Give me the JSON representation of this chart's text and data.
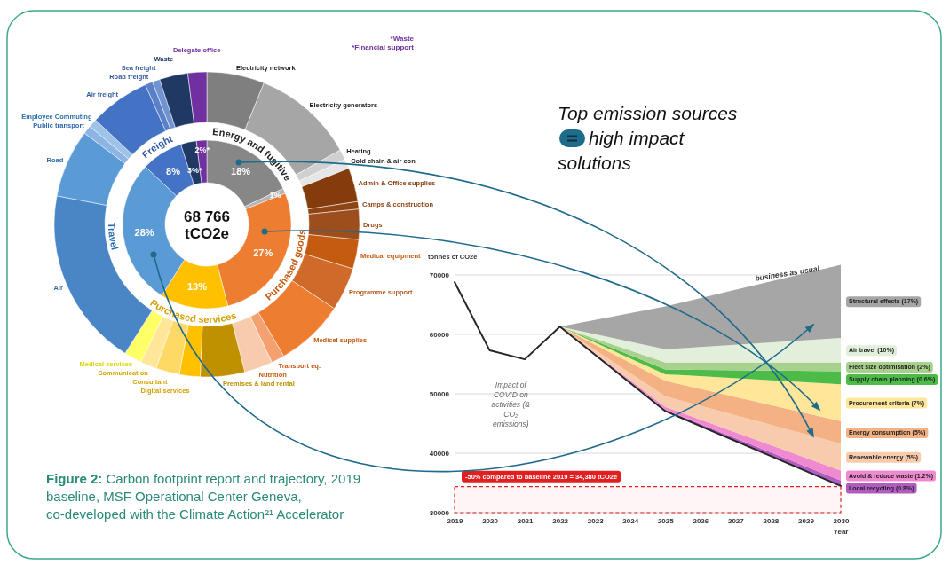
{
  "chart_data": [
    {
      "type": "donut",
      "categories": [
        "Energy and fugitive",
        null,
        "Purchased goods",
        "Purchased services",
        "Travel",
        "Freight",
        null,
        null
      ],
      "values": [
        18,
        1,
        27,
        13,
        28,
        8,
        3,
        2
      ],
      "colors": [
        "#878787",
        "#b4b4b4",
        "#ed7d31",
        "#ffc000",
        "#5b9bd5",
        "#4472c4",
        "#1f3864",
        "#7030a0"
      ],
      "value_labels": [
        "18%",
        "1%",
        "27%",
        "13%",
        "28%",
        "8%",
        "3%*",
        "2%*"
      ],
      "annotations": [
        "68 766 tCO2e",
        "*Waste",
        "*Financial support",
        "Figure 2: Carbon footprint report and trajectory, 2019 baseline, MSF Operational Center Geneva, co-developed with the Climate Action²¹ Accelerator"
      ]
    },
    {
      "type": "donut",
      "categories": [
        "Electricity network",
        "Electricity generators",
        "Heating",
        "Cold chain & air con",
        "Admin & Office supplies",
        "Camps & construction",
        "Drugs",
        "Medical equipment",
        "Programme support",
        "Medical supplies",
        "Transport eq.",
        "Nutrition",
        "Premises & land rental",
        "Digital services",
        "Consultant",
        "Communication",
        "Medical services",
        "Air",
        "Road",
        "Public transport",
        "Employee Commuting",
        "Air freight",
        "Road freight",
        "Sea freight",
        "Waste",
        "Delegate office"
      ],
      "values": [
        6.1,
        10.8,
        1.1,
        1.0,
        3.6,
        0.8,
        3.2,
        3.1,
        4.6,
        7.3,
        1.4,
        3.0,
        4.7,
        2.2,
        2.5,
        1.7,
        1.9,
        19.0,
        7.2,
        0.9,
        0.9,
        6.4,
        0.8,
        0.8,
        3.0,
        2.0
      ],
      "colors": [
        "#7f7f7f",
        "#a6a6a6",
        "#d0d0d0",
        "#e6e6e6",
        "#843c0c",
        "#8f4414",
        "#9c4f1d",
        "#c55a11",
        "#cf6a2a",
        "#ed7d31",
        "#f4a070",
        "#f8cbad",
        "#bf9000",
        "#ffc000",
        "#ffd966",
        "#ffe699",
        "#ffff66",
        "#4a86c5",
        "#5b9bd5",
        "#8db4e2",
        "#9dc3e6",
        "#4472c4",
        "#5b80c8",
        "#6f94d0",
        "#1f3864",
        "#7030a0"
      ]
    },
    {
      "type": "area",
      "xlim": [
        2019,
        2030
      ],
      "ylim": [
        30000,
        72000
      ],
      "xticks": [
        2019,
        2020,
        2021,
        2022,
        2023,
        2024,
        2025,
        2026,
        2027,
        2028,
        2029,
        2030
      ],
      "yticks": [
        30000,
        40000,
        50000,
        60000,
        70000
      ],
      "xlabel": "Year",
      "ylabel": "tonnes of CO2e",
      "grid": "y",
      "legend": "right",
      "bands": [
        {
          "axis": "y",
          "from": 30000,
          "to": 34380,
          "label": "-50% compared to baseline 2019 = 34,380 tCO2e",
          "color": "#e02020"
        }
      ],
      "annotations": [
        "Impact of COVID on activities (& CO₂ emissions)",
        "business as usual",
        "Top emission sources",
        "high impact solutions"
      ],
      "series": [
        {
          "type": "line",
          "color": "#262626",
          "x": [
            2019,
            2020,
            2021,
            2022,
            2025,
            2030
          ],
          "values": [
            68800,
            57300,
            55800,
            61300,
            47100,
            34500
          ]
        },
        {
          "name": "Local recycling (0.8%)",
          "color": "#b05cc0",
          "x": [
            2022,
            2025,
            2030
          ],
          "values": [
            61300,
            47300,
            35400
          ]
        },
        {
          "name": "Avoid & reduce waste (1.2%)",
          "color": "#f08ad0",
          "x": [
            2022,
            2025,
            2030
          ],
          "values": [
            61300,
            47800,
            37100
          ]
        },
        {
          "name": "Renewable energy (5%)",
          "color": "#f8cbad",
          "x": [
            2022,
            2025,
            2030
          ],
          "values": [
            61300,
            49600,
            41600
          ]
        },
        {
          "name": "Energy consumption (5%)",
          "color": "#f4b183",
          "x": [
            2022,
            2025,
            2030
          ],
          "values": [
            61300,
            52200,
            45400
          ]
        },
        {
          "name": "Procurement criteria (7%)",
          "color": "#ffe699",
          "x": [
            2022,
            2025,
            2030
          ],
          "values": [
            61300,
            53300,
            51600
          ]
        },
        {
          "name": "Supply chain planning (0.6%)",
          "color": "#4cbb47",
          "x": [
            2022,
            2025,
            2030
          ],
          "values": [
            61300,
            54100,
            53800
          ]
        },
        {
          "name": "Fleet size optimisation (2%)",
          "color": "#a9d18e",
          "x": [
            2022,
            2025,
            2030
          ],
          "values": [
            61300,
            55300,
            55300
          ]
        },
        {
          "name": "Air travel (10%)",
          "color": "#e2efda",
          "x": [
            2022,
            2025,
            2030
          ],
          "values": [
            61300,
            57500,
            59400
          ]
        },
        {
          "name": "Structural effects (17%)",
          "color": "#a6a6a6",
          "x": [
            2022,
            2025,
            2030
          ],
          "values": [
            61300,
            64700,
            71700
          ]
        }
      ]
    }
  ]
}
